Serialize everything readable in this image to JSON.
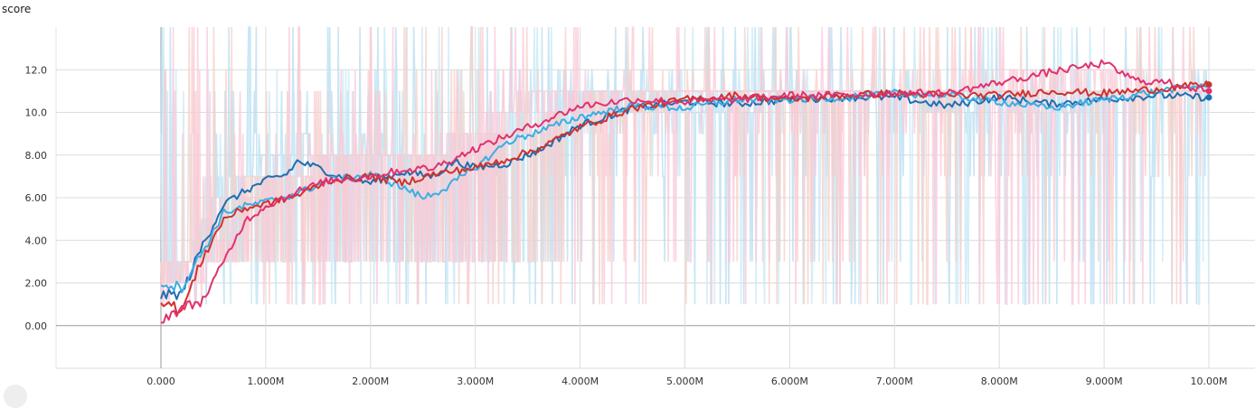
{
  "chart_data": {
    "type": "line",
    "title": "score",
    "xlabel": "",
    "ylabel": "",
    "x_tick_labels": [
      "0.000",
      "1.000M",
      "2.000M",
      "3.000M",
      "4.000M",
      "5.000M",
      "6.000M",
      "7.000M",
      "8.000M",
      "9.000M",
      "10.00M"
    ],
    "y_tick_labels": [
      "0.00",
      "2.00",
      "4.00",
      "6.00",
      "8.00",
      "10.0",
      "12.0"
    ],
    "x_ticks": [
      0,
      1000000,
      2000000,
      3000000,
      4000000,
      5000000,
      6000000,
      7000000,
      8000000,
      9000000,
      10000000
    ],
    "y_ticks": [
      0,
      2,
      4,
      6,
      8,
      10,
      12
    ],
    "xlim": [
      -1000000,
      10450000
    ],
    "ylim": [
      -2,
      14
    ],
    "grid": true,
    "legend": "none",
    "series": [
      {
        "color": "#1f6eb0",
        "raw_color": "#b9dcef",
        "x": [
          0,
          200000,
          400000,
          600000,
          800000,
          1000000,
          1200000,
          1300000,
          1500000,
          1700000,
          2000000,
          2300000,
          2600000,
          2800000,
          3000000,
          3300000,
          3600000,
          4000000,
          4500000,
          5000000,
          5500000,
          6000000,
          6500000,
          7000000,
          7500000,
          8000000,
          8500000,
          9000000,
          9500000,
          10000000
        ],
        "y": [
          1.4,
          1.5,
          3.8,
          5.7,
          6.3,
          6.8,
          7.1,
          7.7,
          7.4,
          7.0,
          6.7,
          7.2,
          7.0,
          7.7,
          7.4,
          7.6,
          8.2,
          9.4,
          10.2,
          10.5,
          10.4,
          10.6,
          10.7,
          10.7,
          10.3,
          10.7,
          10.4,
          10.6,
          10.8,
          10.7
        ]
      },
      {
        "color": "#3aaee4",
        "raw_color": "#c6e8f6",
        "x": [
          0,
          200000,
          400000,
          600000,
          800000,
          1000000,
          1300000,
          1600000,
          2000000,
          2300000,
          2500000,
          2700000,
          3000000,
          3300000,
          3600000,
          4000000,
          4500000,
          5000000,
          5500000,
          6000000,
          6500000,
          7000000,
          7500000,
          8000000,
          8500000,
          9000000,
          9500000,
          10000000
        ],
        "y": [
          2.0,
          1.8,
          3.5,
          5.3,
          5.6,
          5.8,
          6.2,
          6.8,
          7.1,
          6.5,
          6.0,
          6.4,
          7.4,
          8.6,
          9.1,
          9.8,
          10.3,
          10.2,
          10.6,
          10.6,
          10.7,
          10.9,
          10.8,
          10.5,
          10.2,
          10.6,
          11.0,
          11.3
        ]
      },
      {
        "color": "#d0312d",
        "raw_color": "#f6cfc8",
        "x": [
          0,
          200000,
          400000,
          600000,
          800000,
          1000000,
          1300000,
          1600000,
          2000000,
          2300000,
          2600000,
          3000000,
          3300000,
          3600000,
          4000000,
          4500000,
          5000000,
          5500000,
          6000000,
          6500000,
          7000000,
          7500000,
          8000000,
          8500000,
          9000000,
          9500000,
          10000000
        ],
        "y": [
          1.2,
          0.7,
          3.2,
          5.0,
          5.5,
          5.7,
          6.1,
          6.8,
          7.0,
          6.7,
          7.1,
          7.4,
          7.8,
          8.3,
          9.3,
          10.2,
          10.6,
          10.8,
          10.6,
          10.8,
          10.9,
          10.8,
          10.8,
          11.0,
          10.9,
          11.1,
          11.3
        ]
      },
      {
        "color": "#e0326e",
        "raw_color": "#f9c8d8",
        "x": [
          0,
          200000,
          400000,
          600000,
          800000,
          1000000,
          1300000,
          1600000,
          2000000,
          2300000,
          2600000,
          3000000,
          3300000,
          3600000,
          4000000,
          4500000,
          5000000,
          5500000,
          6000000,
          6500000,
          7000000,
          7500000,
          8000000,
          8500000,
          9000000,
          9300000,
          9600000,
          10000000
        ],
        "y": [
          0.3,
          0.8,
          1.2,
          3.0,
          4.9,
          5.6,
          6.3,
          6.8,
          7.0,
          7.3,
          7.4,
          8.3,
          8.9,
          9.5,
          10.3,
          10.6,
          10.5,
          10.6,
          10.8,
          10.8,
          10.9,
          10.9,
          11.4,
          11.9,
          12.3,
          11.5,
          11.4,
          11.0
        ]
      }
    ]
  }
}
